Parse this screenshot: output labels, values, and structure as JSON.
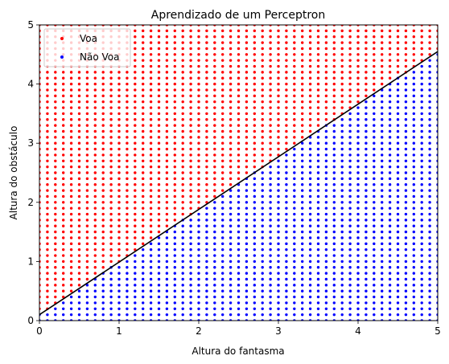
{
  "chart_data": {
    "type": "scatter",
    "title": "Aprendizado de um Perceptron",
    "xlabel": "Altura do fantasma",
    "ylabel": "Altura do obstáculo",
    "xlim": [
      0,
      5
    ],
    "ylim": [
      0,
      5
    ],
    "xticks": [
      "0",
      "1",
      "2",
      "3",
      "4",
      "5"
    ],
    "yticks": [
      "0",
      "1",
      "2",
      "3",
      "4",
      "5"
    ],
    "grid": false,
    "legend_position": "upper-left",
    "grid_step": 0.1,
    "series": [
      {
        "name": "Voa",
        "color": "#ff0000",
        "rule": "points above the decision line"
      },
      {
        "name": "Não Voa",
        "color": "#0000ff",
        "rule": "points below the decision line"
      }
    ],
    "decision_line": {
      "color": "#000000",
      "x": [
        0,
        5
      ],
      "y": [
        0.1,
        4.55
      ]
    }
  }
}
